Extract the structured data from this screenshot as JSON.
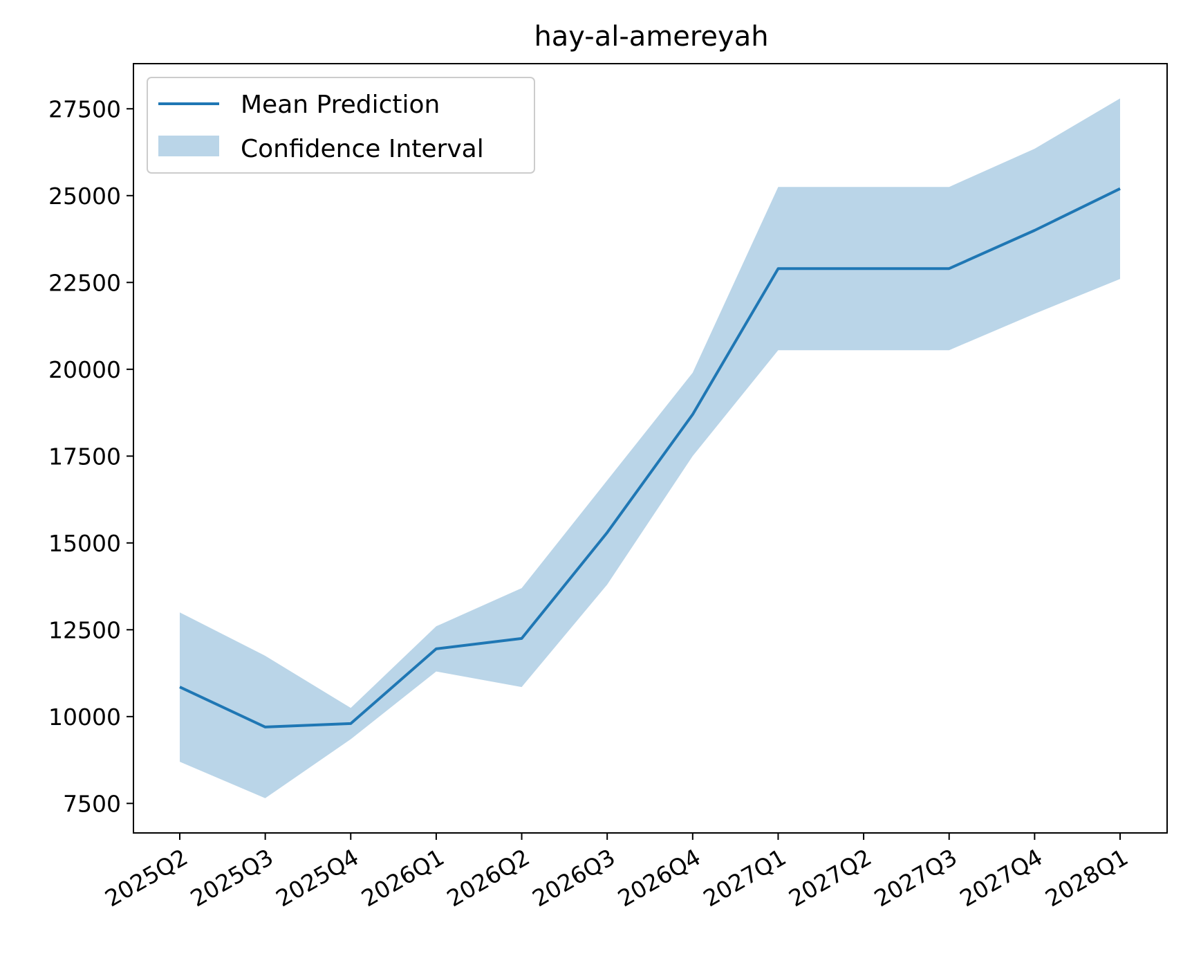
{
  "chart_data": {
    "type": "line",
    "title": "hay-al-amereyah",
    "xlabel": "",
    "ylabel": "",
    "categories": [
      "2025Q2",
      "2025Q3",
      "2025Q4",
      "2026Q1",
      "2026Q2",
      "2026Q3",
      "2026Q4",
      "2027Q1",
      "2027Q2",
      "2027Q3",
      "2027Q4",
      "2028Q1"
    ],
    "series": [
      {
        "name": "Mean Prediction",
        "values": [
          10850,
          9700,
          9800,
          11950,
          12250,
          15300,
          18700,
          22900,
          22900,
          22900,
          24000,
          25200
        ]
      }
    ],
    "confidence_interval": {
      "name": "Confidence Interval",
      "lower": [
        8700,
        7650,
        9350,
        11300,
        10850,
        13800,
        17500,
        20550,
        20550,
        20550,
        21600,
        22600
      ],
      "upper": [
        13000,
        11750,
        10250,
        12600,
        13700,
        16800,
        19900,
        25250,
        25250,
        25250,
        26350,
        27800
      ]
    },
    "yticks": [
      7500,
      10000,
      12500,
      15000,
      17500,
      20000,
      22500,
      25000,
      27500
    ],
    "ylim": [
      6650,
      28800
    ],
    "grid": false,
    "legend_position": "upper-left",
    "colors": {
      "line": "#1f77b4",
      "band": "#bad5e8"
    }
  }
}
